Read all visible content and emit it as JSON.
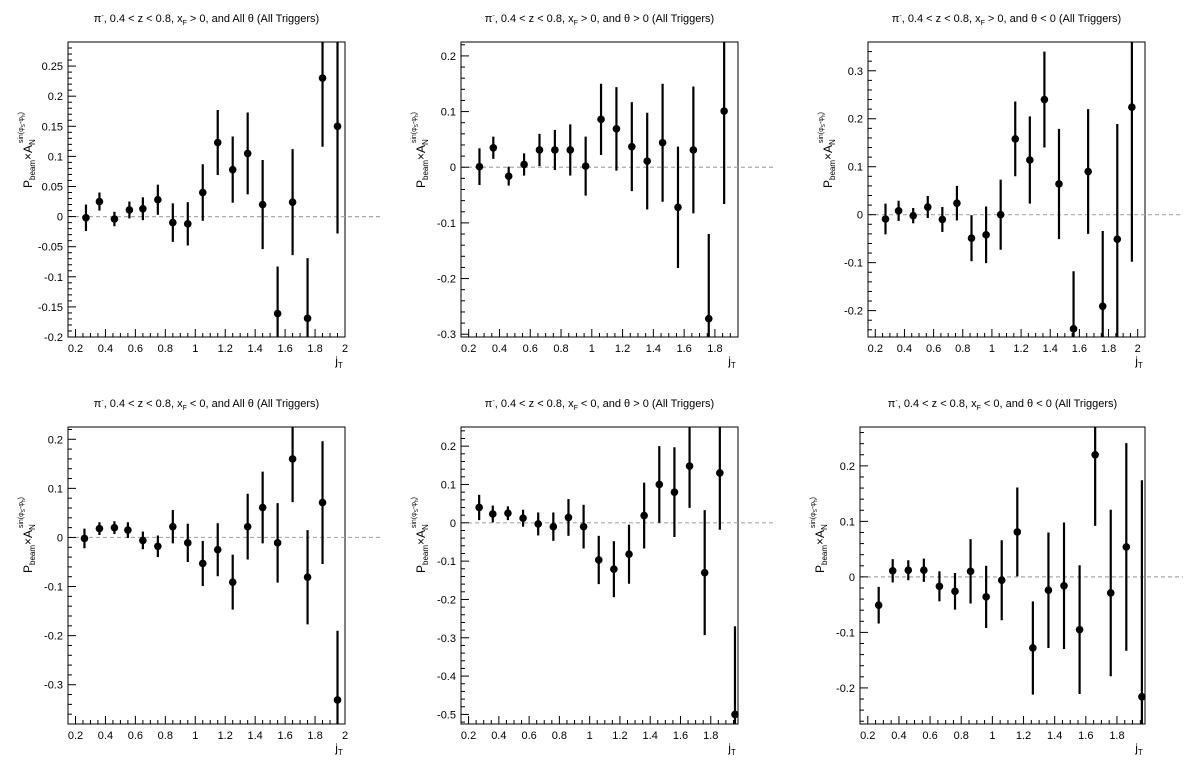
{
  "chart_data": [
    {
      "type": "scatter",
      "title": "π⁻, 0.4 < z < 0.8, x_F > 0, and All θ (All Triggers)",
      "title_html": {
        "pre": "π",
        "sup": "-",
        "mid": ", 0.4 < z < 0.8, x",
        "sub": "F",
        "post": " > 0, and All θ (All Triggers)"
      },
      "xlabel": "j_T",
      "ylabel": "P_beam×A_N^sin(φ_S-φ_h)",
      "xlim": [
        0.15,
        2.0
      ],
      "ylim": [
        -0.2,
        0.29
      ],
      "xticks": [
        0.2,
        0.4,
        0.6,
        0.8,
        1,
        1.2,
        1.4,
        1.6,
        1.8,
        2
      ],
      "xtick_labels": [
        "0.2",
        "0.4",
        "0.6",
        "0.8",
        "1",
        "1.2",
        "1.4",
        "1.6",
        "1.8",
        "2"
      ],
      "yticks": [
        -0.2,
        -0.15,
        -0.1,
        -0.05,
        0,
        0.05,
        0.1,
        0.15,
        0.2,
        0.25
      ],
      "ytick_labels": [
        "-0.2",
        "-0.15",
        "-0.1",
        "-0.05",
        "0",
        "0.05",
        "0.1",
        "0.15",
        "0.2",
        "0.25"
      ],
      "points": [
        {
          "x": 0.27,
          "y": -0.002,
          "err": 0.022
        },
        {
          "x": 0.36,
          "y": 0.025,
          "err": 0.015
        },
        {
          "x": 0.46,
          "y": -0.004,
          "err": 0.012
        },
        {
          "x": 0.56,
          "y": 0.011,
          "err": 0.014
        },
        {
          "x": 0.65,
          "y": 0.013,
          "err": 0.019
        },
        {
          "x": 0.75,
          "y": 0.028,
          "err": 0.025
        },
        {
          "x": 0.85,
          "y": -0.01,
          "err": 0.032
        },
        {
          "x": 0.95,
          "y": -0.012,
          "err": 0.036
        },
        {
          "x": 1.05,
          "y": 0.04,
          "err": 0.047
        },
        {
          "x": 1.15,
          "y": 0.123,
          "err": 0.054
        },
        {
          "x": 1.25,
          "y": 0.078,
          "err": 0.055
        },
        {
          "x": 1.35,
          "y": 0.105,
          "err": 0.068
        },
        {
          "x": 1.45,
          "y": 0.02,
          "err": 0.074
        },
        {
          "x": 1.55,
          "y": -0.161,
          "err": 0.078
        },
        {
          "x": 1.65,
          "y": 0.024,
          "err": 0.088
        },
        {
          "x": 1.75,
          "y": -0.169,
          "err": 0.1
        },
        {
          "x": 1.85,
          "y": 0.23,
          "err": 0.114
        },
        {
          "x": 1.95,
          "y": 0.15,
          "err": 0.178
        }
      ]
    },
    {
      "type": "scatter",
      "title": "π⁻, 0.4 < z < 0.8, x_F > 0, and θ > 0 (All Triggers)",
      "title_html": {
        "pre": "π",
        "sup": "-",
        "mid": ", 0.4 < z < 0.8, x",
        "sub": "F",
        "post": " > 0, and θ > 0 (All Triggers)"
      },
      "xlabel": "j_T",
      "ylabel": "P_beam×A_N^sin(φ_S-φ_h)",
      "xlim": [
        0.15,
        1.95
      ],
      "ylim": [
        -0.305,
        0.225
      ],
      "xticks": [
        0.2,
        0.4,
        0.6,
        0.8,
        1,
        1.2,
        1.4,
        1.6,
        1.8
      ],
      "xtick_labels": [
        "0.2",
        "0.4",
        "0.6",
        "0.8",
        "1",
        "1.2",
        "1.4",
        "1.6",
        "1.8"
      ],
      "yticks": [
        -0.3,
        -0.2,
        -0.1,
        0,
        0.1,
        0.2
      ],
      "ytick_labels": [
        "-0.3",
        "-0.2",
        "-0.1",
        "0",
        "0.1",
        "0.2"
      ],
      "points": [
        {
          "x": 0.27,
          "y": 0.001,
          "err": 0.033
        },
        {
          "x": 0.36,
          "y": 0.035,
          "err": 0.02
        },
        {
          "x": 0.46,
          "y": -0.016,
          "err": 0.017
        },
        {
          "x": 0.56,
          "y": 0.005,
          "err": 0.02
        },
        {
          "x": 0.66,
          "y": 0.031,
          "err": 0.029
        },
        {
          "x": 0.76,
          "y": 0.031,
          "err": 0.036
        },
        {
          "x": 0.86,
          "y": 0.031,
          "err": 0.046
        },
        {
          "x": 0.96,
          "y": 0.002,
          "err": 0.053
        },
        {
          "x": 1.06,
          "y": 0.086,
          "err": 0.064
        },
        {
          "x": 1.16,
          "y": 0.069,
          "err": 0.075
        },
        {
          "x": 1.26,
          "y": 0.037,
          "err": 0.08
        },
        {
          "x": 1.36,
          "y": 0.011,
          "err": 0.087
        },
        {
          "x": 1.46,
          "y": 0.044,
          "err": 0.106
        },
        {
          "x": 1.56,
          "y": -0.072,
          "err": 0.109
        },
        {
          "x": 1.66,
          "y": 0.031,
          "err": 0.114
        },
        {
          "x": 1.76,
          "y": -0.272,
          "err": 0.152
        },
        {
          "x": 1.86,
          "y": 0.101,
          "err": 0.167
        }
      ]
    },
    {
      "type": "scatter",
      "title": "π⁻, 0.4 < z < 0.8, x_F > 0, and θ < 0 (All Triggers)",
      "title_html": {
        "pre": "π",
        "sup": "-",
        "mid": ", 0.4 < z < 0.8, x",
        "sub": "F",
        "post": " > 0, and θ < 0 (All Triggers)"
      },
      "xlabel": "j_T",
      "ylabel": "P_beam×A_N^sin(φ_S-φ_h)",
      "xlim": [
        0.15,
        2.05
      ],
      "ylim": [
        -0.255,
        0.36
      ],
      "xticks": [
        0.2,
        0.4,
        0.6,
        0.8,
        1,
        1.2,
        1.4,
        1.6,
        1.8,
        2
      ],
      "xtick_labels": [
        "0.2",
        "0.4",
        "0.6",
        "0.8",
        "1",
        "1.2",
        "1.4",
        "1.6",
        "1.8",
        "2"
      ],
      "yticks": [
        -0.2,
        -0.1,
        0,
        0.1,
        0.2,
        0.3
      ],
      "ytick_labels": [
        "-0.2",
        "-0.1",
        "0",
        "0.1",
        "0.2",
        "0.3"
      ],
      "points": [
        {
          "x": 0.27,
          "y": -0.009,
          "err": 0.032
        },
        {
          "x": 0.36,
          "y": 0.008,
          "err": 0.021
        },
        {
          "x": 0.46,
          "y": -0.002,
          "err": 0.016
        },
        {
          "x": 0.56,
          "y": 0.016,
          "err": 0.023
        },
        {
          "x": 0.66,
          "y": -0.01,
          "err": 0.026
        },
        {
          "x": 0.76,
          "y": 0.024,
          "err": 0.036
        },
        {
          "x": 0.86,
          "y": -0.049,
          "err": 0.048
        },
        {
          "x": 0.96,
          "y": -0.042,
          "err": 0.059
        },
        {
          "x": 1.06,
          "y": 0.0,
          "err": 0.073
        },
        {
          "x": 1.16,
          "y": 0.158,
          "err": 0.078
        },
        {
          "x": 1.26,
          "y": 0.114,
          "err": 0.091
        },
        {
          "x": 1.36,
          "y": 0.24,
          "err": 0.1
        },
        {
          "x": 1.46,
          "y": 0.064,
          "err": 0.115
        },
        {
          "x": 1.56,
          "y": -0.238,
          "err": 0.12
        },
        {
          "x": 1.66,
          "y": 0.09,
          "err": 0.13
        },
        {
          "x": 1.76,
          "y": -0.191,
          "err": 0.157
        },
        {
          "x": 1.86,
          "y": -0.051,
          "err": 0.24
        },
        {
          "x": 1.96,
          "y": 0.224,
          "err": 0.322
        }
      ]
    },
    {
      "type": "scatter",
      "title": "π⁻, 0.4 < z < 0.8, x_F < 0, and All θ (All Triggers)",
      "title_html": {
        "pre": "π",
        "sup": "-",
        "mid": ", 0.4 < z < 0.8, x",
        "sub": "F",
        "post": " < 0, and All θ (All Triggers)"
      },
      "xlabel": "j_T",
      "ylabel": "P_beam×A_N^sin(φ_S-φ_h)",
      "xlim": [
        0.15,
        2.0
      ],
      "ylim": [
        -0.38,
        0.225
      ],
      "xticks": [
        0.2,
        0.4,
        0.6,
        0.8,
        1,
        1.2,
        1.4,
        1.6,
        1.8,
        2
      ],
      "xtick_labels": [
        "0.2",
        "0.4",
        "0.6",
        "0.8",
        "1",
        "1.2",
        "1.4",
        "1.6",
        "1.8",
        "2"
      ],
      "yticks": [
        -0.3,
        -0.2,
        -0.1,
        0,
        0.1,
        0.2
      ],
      "ytick_labels": [
        "-0.3",
        "-0.2",
        "-0.1",
        "0",
        "0.1",
        "0.2"
      ],
      "points": [
        {
          "x": 0.26,
          "y": -0.002,
          "err": 0.02
        },
        {
          "x": 0.36,
          "y": 0.018,
          "err": 0.013
        },
        {
          "x": 0.46,
          "y": 0.02,
          "err": 0.013
        },
        {
          "x": 0.55,
          "y": 0.015,
          "err": 0.016
        },
        {
          "x": 0.65,
          "y": -0.006,
          "err": 0.018
        },
        {
          "x": 0.75,
          "y": -0.018,
          "err": 0.022
        },
        {
          "x": 0.85,
          "y": 0.022,
          "err": 0.034
        },
        {
          "x": 0.95,
          "y": -0.011,
          "err": 0.039
        },
        {
          "x": 1.05,
          "y": -0.053,
          "err": 0.046
        },
        {
          "x": 1.15,
          "y": -0.025,
          "err": 0.054
        },
        {
          "x": 1.25,
          "y": -0.091,
          "err": 0.056
        },
        {
          "x": 1.35,
          "y": 0.022,
          "err": 0.067
        },
        {
          "x": 1.45,
          "y": 0.061,
          "err": 0.073
        },
        {
          "x": 1.55,
          "y": -0.011,
          "err": 0.081
        },
        {
          "x": 1.65,
          "y": 0.16,
          "err": 0.088
        },
        {
          "x": 1.75,
          "y": -0.081,
          "err": 0.096
        },
        {
          "x": 1.85,
          "y": 0.071,
          "err": 0.125
        },
        {
          "x": 1.95,
          "y": -0.331,
          "err": 0.141
        }
      ]
    },
    {
      "type": "scatter",
      "title": "π⁻, 0.4 < z < 0.8, x_F < 0, and θ > 0 (All Triggers)",
      "title_html": {
        "pre": "π",
        "sup": "-",
        "mid": ", 0.4 < z < 0.8, x",
        "sub": "F",
        "post": " < 0, and θ > 0 (All Triggers)"
      },
      "xlabel": "j_T",
      "ylabel": "P_beam×A_N^sin(φ_S-φ_h)",
      "xlim": [
        0.15,
        1.98
      ],
      "ylim": [
        -0.525,
        0.25
      ],
      "xticks": [
        0.2,
        0.4,
        0.6,
        0.8,
        1,
        1.2,
        1.4,
        1.6,
        1.8
      ],
      "xtick_labels": [
        "0.2",
        "0.4",
        "0.6",
        "0.8",
        "1",
        "1.2",
        "1.4",
        "1.6",
        "1.8"
      ],
      "yticks": [
        -0.5,
        -0.4,
        -0.3,
        -0.2,
        -0.1,
        0,
        0.1,
        0.2
      ],
      "ytick_labels": [
        "-0.5",
        "-0.4",
        "-0.3",
        "-0.2",
        "-0.1",
        "0",
        "0.1",
        "0.2"
      ],
      "points": [
        {
          "x": 0.27,
          "y": 0.04,
          "err": 0.033
        },
        {
          "x": 0.36,
          "y": 0.023,
          "err": 0.022
        },
        {
          "x": 0.46,
          "y": 0.025,
          "err": 0.018
        },
        {
          "x": 0.56,
          "y": 0.012,
          "err": 0.022
        },
        {
          "x": 0.66,
          "y": -0.003,
          "err": 0.03
        },
        {
          "x": 0.76,
          "y": -0.01,
          "err": 0.037
        },
        {
          "x": 0.86,
          "y": 0.014,
          "err": 0.048
        },
        {
          "x": 0.96,
          "y": -0.01,
          "err": 0.057
        },
        {
          "x": 1.06,
          "y": -0.097,
          "err": 0.063
        },
        {
          "x": 1.16,
          "y": -0.121,
          "err": 0.073
        },
        {
          "x": 1.26,
          "y": -0.082,
          "err": 0.077
        },
        {
          "x": 1.36,
          "y": 0.019,
          "err": 0.086
        },
        {
          "x": 1.46,
          "y": 0.1,
          "err": 0.1
        },
        {
          "x": 1.56,
          "y": 0.08,
          "err": 0.117
        },
        {
          "x": 1.66,
          "y": 0.148,
          "err": 0.109
        },
        {
          "x": 1.76,
          "y": -0.13,
          "err": 0.163
        },
        {
          "x": 1.86,
          "y": 0.13,
          "err": 0.148
        },
        {
          "x": 1.96,
          "y": -0.5,
          "err": 0.23
        }
      ]
    },
    {
      "type": "scatter",
      "title": "π⁻, 0.4 < z < 0.8, x_F < 0, and θ < 0 (All Triggers)",
      "title_html": {
        "pre": "π",
        "sup": "-",
        "mid": ", 0.4 < z < 0.8, x",
        "sub": "F",
        "post": " < 0, and θ < 0 (All Triggers)"
      },
      "xlabel": "j_T",
      "ylabel": "P_beam×A_N^sin(φ_S-φ_h)",
      "xlim": [
        0.15,
        1.98
      ],
      "ylim": [
        -0.265,
        0.27
      ],
      "xticks": [
        0.2,
        0.4,
        0.6,
        0.8,
        1,
        1.2,
        1.4,
        1.6,
        1.8
      ],
      "xtick_labels": [
        "0.2",
        "0.4",
        "0.6",
        "0.8",
        "1",
        "1.2",
        "1.4",
        "1.6",
        "1.8"
      ],
      "yticks": [
        -0.2,
        -0.1,
        0,
        0.1,
        0.2
      ],
      "ytick_labels": [
        "-0.2",
        "-0.1",
        "0",
        "0.1",
        "0.2"
      ],
      "points": [
        {
          "x": 0.27,
          "y": -0.051,
          "err": 0.033
        },
        {
          "x": 0.36,
          "y": 0.011,
          "err": 0.021
        },
        {
          "x": 0.46,
          "y": 0.012,
          "err": 0.018
        },
        {
          "x": 0.56,
          "y": 0.012,
          "err": 0.021
        },
        {
          "x": 0.66,
          "y": -0.017,
          "err": 0.027
        },
        {
          "x": 0.76,
          "y": -0.026,
          "err": 0.033
        },
        {
          "x": 0.86,
          "y": 0.01,
          "err": 0.058
        },
        {
          "x": 0.96,
          "y": -0.036,
          "err": 0.056
        },
        {
          "x": 1.06,
          "y": -0.006,
          "err": 0.072
        },
        {
          "x": 1.16,
          "y": 0.081,
          "err": 0.08
        },
        {
          "x": 1.26,
          "y": -0.128,
          "err": 0.084
        },
        {
          "x": 1.36,
          "y": -0.024,
          "err": 0.104
        },
        {
          "x": 1.46,
          "y": -0.016,
          "err": 0.114
        },
        {
          "x": 1.56,
          "y": -0.095,
          "err": 0.116
        },
        {
          "x": 1.66,
          "y": 0.22,
          "err": 0.128
        },
        {
          "x": 1.76,
          "y": -0.029,
          "err": 0.15
        },
        {
          "x": 1.86,
          "y": 0.054,
          "err": 0.187
        },
        {
          "x": 1.96,
          "y": -0.216,
          "err": 0.39
        }
      ]
    }
  ],
  "colors": {
    "marker": "#000000",
    "zero_line": "#aaaaaa",
    "frame": "#000000"
  }
}
